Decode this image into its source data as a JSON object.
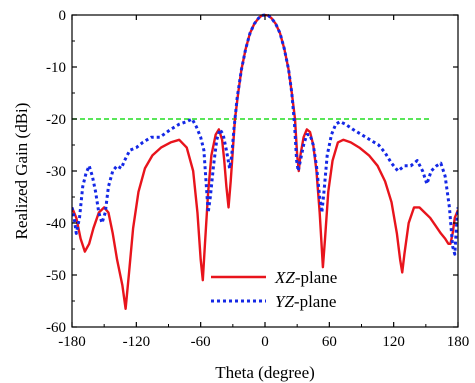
{
  "chart_data": {
    "type": "line",
    "title": "",
    "xlabel": "Theta (degree)",
    "ylabel": "Realized Gain (dBi)",
    "xlim": [
      -180,
      180
    ],
    "ylim": [
      -60,
      0
    ],
    "xticks": [
      -180,
      -120,
      -60,
      0,
      60,
      120,
      180
    ],
    "yticks": [
      0,
      -10,
      -20,
      -30,
      -40,
      -50,
      -60
    ],
    "grid": false,
    "legend_position": "bottom-center",
    "reference_line": {
      "y": -20,
      "x_range": [
        -180,
        155
      ],
      "color": "#22dd22",
      "style": "dashed"
    },
    "series": [
      {
        "name": "XZ-plane",
        "name_italic": "XZ",
        "name_suffix": "-plane",
        "color": "#e8141c",
        "style": "solid",
        "points": [
          [
            -180,
            -37
          ],
          [
            -176,
            -39
          ],
          [
            -172,
            -43
          ],
          [
            -168,
            -45.5
          ],
          [
            -164,
            -44
          ],
          [
            -160,
            -41
          ],
          [
            -155,
            -38
          ],
          [
            -150,
            -37
          ],
          [
            -146,
            -38
          ],
          [
            -142,
            -42
          ],
          [
            -138,
            -47
          ],
          [
            -133,
            -52
          ],
          [
            -130,
            -56.5
          ],
          [
            -127,
            -50
          ],
          [
            -123,
            -41
          ],
          [
            -118,
            -34
          ],
          [
            -112,
            -29.5
          ],
          [
            -105,
            -27
          ],
          [
            -97,
            -25.5
          ],
          [
            -88,
            -24.5
          ],
          [
            -80,
            -24
          ],
          [
            -73,
            -25.5
          ],
          [
            -67,
            -30
          ],
          [
            -63,
            -38
          ],
          [
            -60,
            -47
          ],
          [
            -58,
            -51
          ],
          [
            -56,
            -44
          ],
          [
            -53,
            -34
          ],
          [
            -50,
            -27
          ],
          [
            -46,
            -23
          ],
          [
            -43,
            -22
          ],
          [
            -40,
            -24
          ],
          [
            -38,
            -28
          ],
          [
            -36,
            -33
          ],
          [
            -34,
            -37
          ],
          [
            -32,
            -32
          ],
          [
            -30,
            -26
          ],
          [
            -28,
            -20
          ],
          [
            -25,
            -15
          ],
          [
            -22,
            -10.5
          ],
          [
            -18,
            -6.5
          ],
          [
            -14,
            -3.5
          ],
          [
            -10,
            -1.7
          ],
          [
            -6,
            -0.6
          ],
          [
            -3,
            -0.1
          ],
          [
            0,
            0
          ],
          [
            3,
            -0.1
          ],
          [
            6,
            -0.6
          ],
          [
            10,
            -1.7
          ],
          [
            14,
            -3.5
          ],
          [
            18,
            -6.5
          ],
          [
            22,
            -10.5
          ],
          [
            25,
            -15
          ],
          [
            28,
            -20
          ],
          [
            30,
            -27
          ],
          [
            31.5,
            -30
          ],
          [
            33,
            -27
          ],
          [
            36,
            -23.5
          ],
          [
            39,
            -22
          ],
          [
            42,
            -22.5
          ],
          [
            45,
            -25
          ],
          [
            48,
            -30
          ],
          [
            51,
            -38
          ],
          [
            53,
            -45
          ],
          [
            54,
            -48.5
          ],
          [
            56,
            -43
          ],
          [
            59,
            -34
          ],
          [
            63,
            -28
          ],
          [
            68,
            -24.5
          ],
          [
            73,
            -24
          ],
          [
            80,
            -24.5
          ],
          [
            88,
            -25.5
          ],
          [
            97,
            -27
          ],
          [
            105,
            -29
          ],
          [
            112,
            -32
          ],
          [
            118,
            -36
          ],
          [
            123,
            -42
          ],
          [
            126,
            -47
          ],
          [
            128,
            -49.5
          ],
          [
            130,
            -46
          ],
          [
            134,
            -40
          ],
          [
            139,
            -37
          ],
          [
            144,
            -37
          ],
          [
            149,
            -38
          ],
          [
            154,
            -39
          ],
          [
            159,
            -40.5
          ],
          [
            164,
            -42
          ],
          [
            168,
            -43
          ],
          [
            171,
            -44
          ],
          [
            173,
            -44
          ],
          [
            175,
            -42
          ],
          [
            177,
            -39
          ],
          [
            180,
            -37.5
          ]
        ]
      },
      {
        "name": "YZ-plane",
        "name_italic": "YZ",
        "name_suffix": "-plane",
        "color": "#1428e6",
        "style": "dotted",
        "points": [
          [
            -180,
            -37
          ],
          [
            -178,
            -39
          ],
          [
            -176,
            -42
          ],
          [
            -173,
            -39
          ],
          [
            -170,
            -33
          ],
          [
            -167,
            -30.5
          ],
          [
            -164,
            -29
          ],
          [
            -161,
            -31
          ],
          [
            -158,
            -34
          ],
          [
            -155,
            -38
          ],
          [
            -152,
            -40
          ],
          [
            -149,
            -38
          ],
          [
            -146,
            -33
          ],
          [
            -142,
            -30
          ],
          [
            -138,
            -29
          ],
          [
            -134,
            -29.5
          ],
          [
            -131,
            -28
          ],
          [
            -126,
            -26
          ],
          [
            -120,
            -25.5
          ],
          [
            -114,
            -24.5
          ],
          [
            -106,
            -23.5
          ],
          [
            -98,
            -23.5
          ],
          [
            -88,
            -22
          ],
          [
            -80,
            -21
          ],
          [
            -73,
            -20.5
          ],
          [
            -68,
            -20
          ],
          [
            -64,
            -21.5
          ],
          [
            -60,
            -23.5
          ],
          [
            -57,
            -26
          ],
          [
            -55,
            -32
          ],
          [
            -53,
            -38
          ],
          [
            -51,
            -35
          ],
          [
            -48,
            -29
          ],
          [
            -45,
            -24
          ],
          [
            -42,
            -22
          ],
          [
            -39,
            -23
          ],
          [
            -36,
            -26
          ],
          [
            -33,
            -29.5
          ],
          [
            -31,
            -27
          ],
          [
            -29,
            -22
          ],
          [
            -26,
            -16
          ],
          [
            -22,
            -10.5
          ],
          [
            -18,
            -6.5
          ],
          [
            -14,
            -3.5
          ],
          [
            -10,
            -1.7
          ],
          [
            -6,
            -0.6
          ],
          [
            -3,
            -0.1
          ],
          [
            0,
            0
          ],
          [
            3,
            -0.1
          ],
          [
            6,
            -0.6
          ],
          [
            10,
            -1.7
          ],
          [
            14,
            -3.5
          ],
          [
            18,
            -6.5
          ],
          [
            22,
            -10.5
          ],
          [
            25,
            -15
          ],
          [
            27.5,
            -21
          ],
          [
            29.5,
            -28
          ],
          [
            31,
            -30
          ],
          [
            33,
            -28
          ],
          [
            36,
            -25
          ],
          [
            39,
            -23
          ],
          [
            42,
            -23
          ],
          [
            45,
            -25
          ],
          [
            48,
            -29
          ],
          [
            51,
            -35
          ],
          [
            53,
            -38
          ],
          [
            55,
            -34
          ],
          [
            58,
            -27
          ],
          [
            62,
            -23
          ],
          [
            66,
            -21
          ],
          [
            70,
            -20.5
          ],
          [
            75,
            -21
          ],
          [
            82,
            -22
          ],
          [
            90,
            -23
          ],
          [
            98,
            -24
          ],
          [
            106,
            -25
          ],
          [
            112,
            -26.5
          ],
          [
            118,
            -28.5
          ],
          [
            124,
            -30
          ],
          [
            130,
            -29
          ],
          [
            136,
            -29
          ],
          [
            142,
            -28
          ],
          [
            147,
            -30
          ],
          [
            151,
            -32.5
          ],
          [
            155,
            -30
          ],
          [
            160,
            -29
          ],
          [
            164,
            -28.5
          ],
          [
            168,
            -31
          ],
          [
            172,
            -37
          ],
          [
            175,
            -44.5
          ],
          [
            177,
            -46
          ],
          [
            178.5,
            -41
          ],
          [
            180,
            -37
          ]
        ]
      }
    ]
  }
}
